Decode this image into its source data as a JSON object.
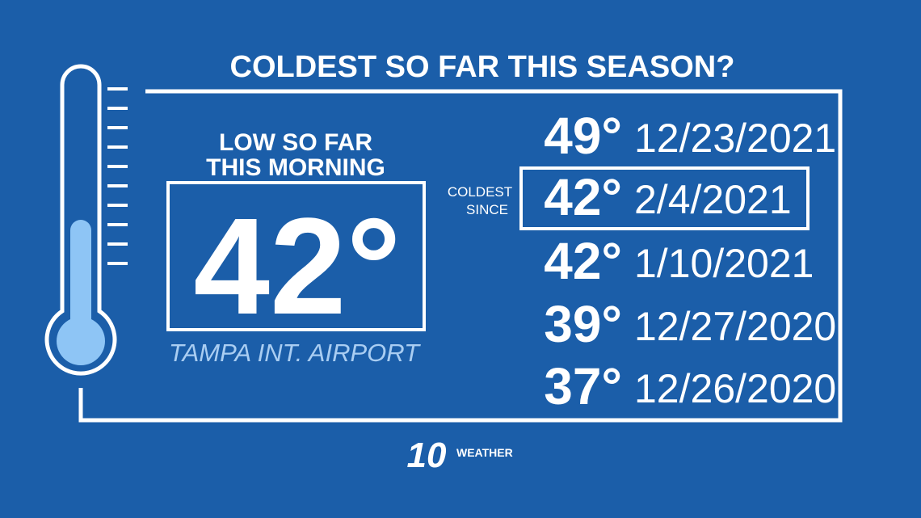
{
  "title": "COLDEST SO FAR THIS SEASON?",
  "current": {
    "label_lines": [
      "LOW SO FAR",
      "THIS MORNING"
    ],
    "temperature": "42°",
    "location": "TAMPA INT. AIRPORT"
  },
  "callout": {
    "lines": [
      "COLDEST",
      "SINCE"
    ],
    "highlight_index": 1
  },
  "records": [
    {
      "temperature": "49°",
      "date": "12/23/2021"
    },
    {
      "temperature": "42°",
      "date": "2/4/2021"
    },
    {
      "temperature": "42°",
      "date": "1/10/2021"
    },
    {
      "temperature": "39°",
      "date": "12/27/2020"
    },
    {
      "temperature": "37°",
      "date": "12/26/2020"
    }
  ],
  "logo": {
    "number": "10",
    "text": "WEATHER"
  }
}
